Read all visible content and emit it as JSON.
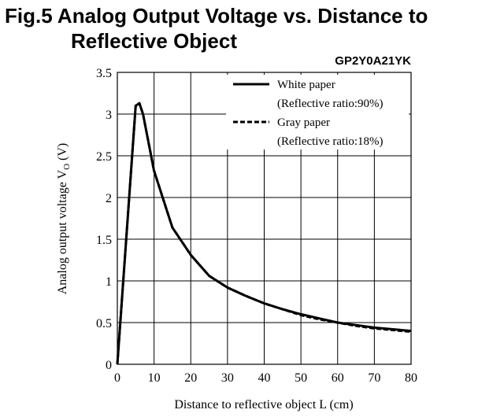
{
  "figure": {
    "title_line1": "Fig.5 Analog Output Voltage vs. Distance to",
    "title_line2": "Reflective Object",
    "model": "GP2Y0A21YK"
  },
  "chart_data": {
    "type": "line",
    "title": "Analog Output Voltage vs. Distance to Reflective Object",
    "xlabel": "Distance to reflective object L (cm)",
    "ylabel": "Analog output voltage VO (V)",
    "ylabel_main": "Analog output voltage V",
    "ylabel_sub": "O",
    "ylabel_unit": " (V)",
    "xlim": [
      0,
      80
    ],
    "ylim": [
      0,
      3.5
    ],
    "xticks": [
      0,
      10,
      20,
      30,
      40,
      50,
      60,
      70,
      80
    ],
    "yticks": [
      0,
      0.5,
      1,
      1.5,
      2,
      2.5,
      3,
      3.5
    ],
    "ytick_labels": [
      "0",
      "0.5",
      "1",
      "1.5",
      "2",
      "2.5",
      "3",
      "3.5"
    ],
    "grid": true,
    "legend_position": "top-right",
    "series": [
      {
        "name": "White paper",
        "note": "(Reflective ratio:90%)",
        "style": "solid",
        "x": [
          0,
          5,
          6,
          7,
          10,
          15,
          20,
          25,
          30,
          35,
          40,
          45,
          50,
          55,
          60,
          65,
          70,
          75,
          80
        ],
        "y": [
          0,
          3.1,
          3.13,
          3.0,
          2.32,
          1.64,
          1.31,
          1.06,
          0.92,
          0.82,
          0.73,
          0.66,
          0.6,
          0.55,
          0.5,
          0.47,
          0.44,
          0.42,
          0.4
        ]
      },
      {
        "name": "Gray paper",
        "note": "(Reflective ratio:18%)",
        "style": "dashed",
        "x": [
          0,
          5,
          6,
          7,
          10,
          15,
          20,
          25,
          30,
          35,
          40,
          45,
          50,
          55,
          60,
          65,
          70,
          75,
          80
        ],
        "y": [
          0,
          3.1,
          3.13,
          3.0,
          2.32,
          1.64,
          1.31,
          1.06,
          0.92,
          0.82,
          0.73,
          0.66,
          0.59,
          0.54,
          0.5,
          0.46,
          0.43,
          0.41,
          0.39
        ]
      }
    ]
  }
}
